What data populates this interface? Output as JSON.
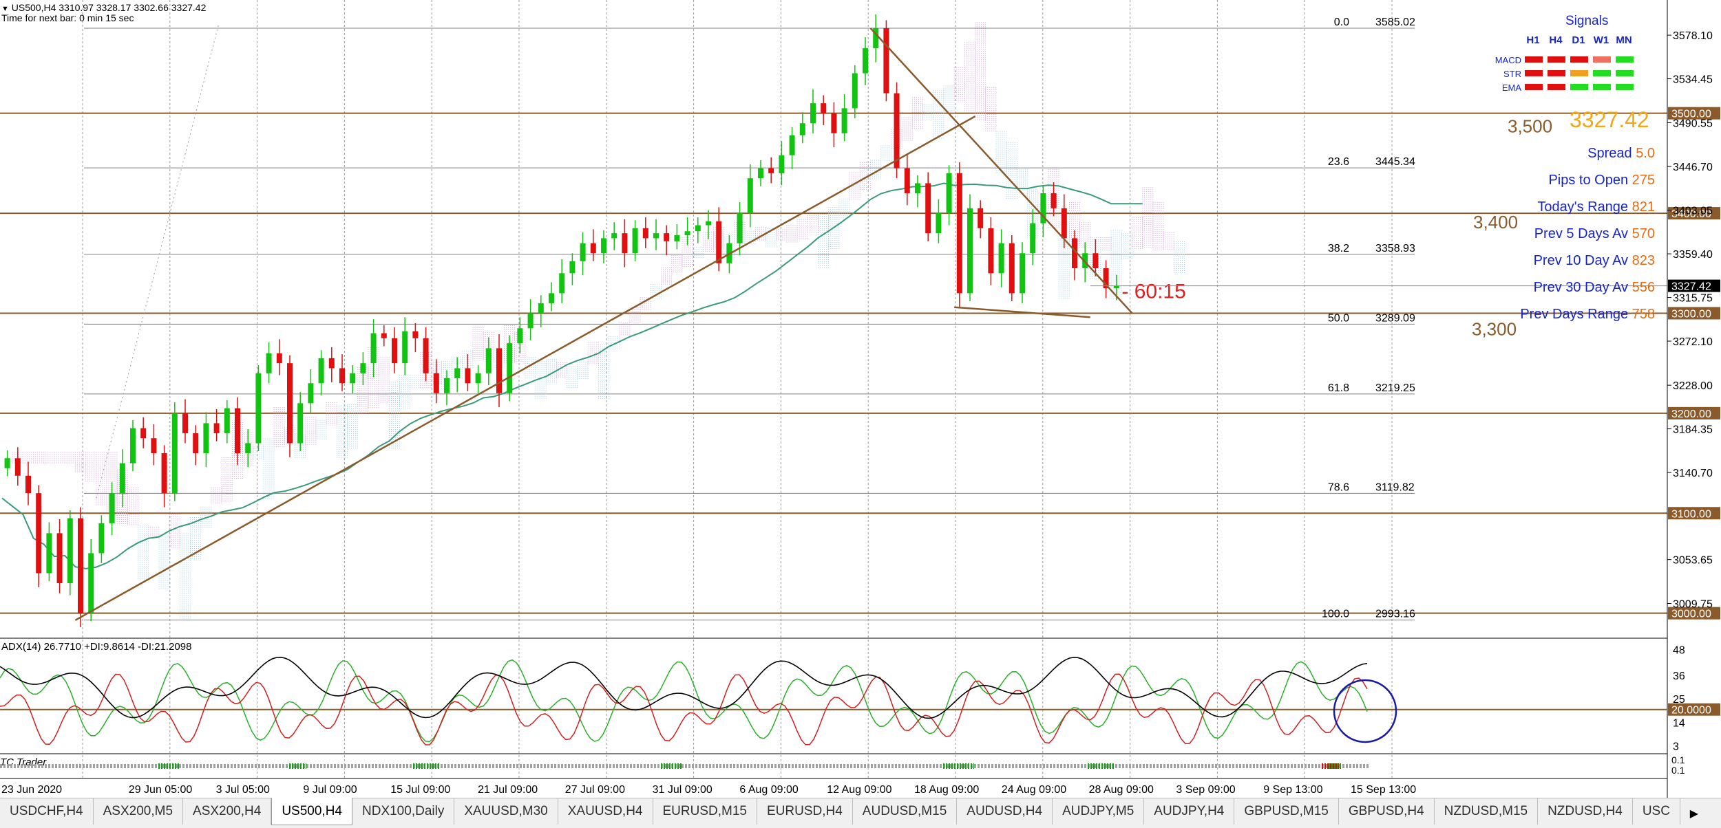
{
  "header": {
    "symbol_line": "US500,H4  3310.97 3328.17 3302.66 3327.42",
    "timer_line": "Time for next bar: 0 min 15 sec"
  },
  "chart_data": {
    "type": "candlestick",
    "symbol": "US500",
    "timeframe": "H4",
    "ohlc_current": {
      "open": 3310.97,
      "high": 3328.17,
      "low": 3302.66,
      "close": 3327.42
    },
    "ylim": [
      2975,
      3605
    ],
    "y_ticks": [
      "3578.10",
      "3534.45",
      "3490.55",
      "3446.70",
      "3403.05",
      "3359.40",
      "3315.75",
      "3272.10",
      "3228.00",
      "3184.35",
      "3140.70",
      "3053.65",
      "3009.75"
    ],
    "x_ticks": [
      "23 Jun 2020",
      "29 Jun 05:00",
      "3 Jul 05:00",
      "9 Jul 09:00",
      "15 Jul 09:00",
      "21 Jul 09:00",
      "27 Jul 09:00",
      "31 Jul 09:00",
      "6 Aug 09:00",
      "12 Aug 09:00",
      "18 Aug 09:00",
      "24 Aug 09:00",
      "28 Aug 09:00",
      "3 Sep 09:00",
      "9 Sep 13:00",
      "15 Sep 13:00"
    ],
    "price_path": [
      [
        0,
        3155
      ],
      [
        2,
        3120
      ],
      [
        3,
        3040
      ],
      [
        4,
        3080
      ],
      [
        5,
        3030
      ],
      [
        6,
        3095
      ],
      [
        7,
        3000
      ],
      [
        8,
        3060
      ],
      [
        9,
        3090
      ],
      [
        11,
        3150
      ],
      [
        12,
        3185
      ],
      [
        13,
        3175
      ],
      [
        14,
        3160
      ],
      [
        15,
        3120
      ],
      [
        16,
        3200
      ],
      [
        17,
        3180
      ],
      [
        18,
        3160
      ],
      [
        19,
        3190
      ],
      [
        20,
        3180
      ],
      [
        21,
        3205
      ],
      [
        22,
        3160
      ],
      [
        23,
        3170
      ],
      [
        24,
        3240
      ],
      [
        25,
        3260
      ],
      [
        26,
        3250
      ],
      [
        27,
        3170
      ],
      [
        28,
        3210
      ],
      [
        29,
        3230
      ],
      [
        30,
        3255
      ],
      [
        31,
        3245
      ],
      [
        32,
        3230
      ],
      [
        33,
        3240
      ],
      [
        34,
        3250
      ],
      [
        35,
        3280
      ],
      [
        36,
        3275
      ],
      [
        37,
        3250
      ],
      [
        38,
        3282
      ],
      [
        39,
        3275
      ],
      [
        40,
        3240
      ],
      [
        41,
        3220
      ],
      [
        42,
        3235
      ],
      [
        43,
        3245
      ],
      [
        44,
        3230
      ],
      [
        45,
        3240
      ],
      [
        46,
        3265
      ],
      [
        47,
        3220
      ],
      [
        48,
        3270
      ],
      [
        49,
        3285
      ],
      [
        50,
        3300
      ],
      [
        51,
        3310
      ],
      [
        52,
        3320
      ],
      [
        53,
        3340
      ],
      [
        54,
        3352
      ],
      [
        55,
        3370
      ],
      [
        56,
        3360
      ],
      [
        57,
        3375
      ],
      [
        58,
        3380
      ],
      [
        59,
        3360
      ],
      [
        60,
        3385
      ],
      [
        61,
        3375
      ],
      [
        62,
        3380
      ],
      [
        63,
        3372
      ],
      [
        64,
        3378
      ],
      [
        65,
        3382
      ],
      [
        66,
        3388
      ],
      [
        67,
        3392
      ],
      [
        68,
        3350
      ],
      [
        69,
        3370
      ],
      [
        70,
        3400
      ],
      [
        71,
        3435
      ],
      [
        72,
        3445
      ],
      [
        73,
        3440
      ],
      [
        74,
        3458
      ],
      [
        75,
        3478
      ],
      [
        76,
        3490
      ],
      [
        77,
        3510
      ],
      [
        78,
        3500
      ],
      [
        79,
        3480
      ],
      [
        80,
        3505
      ],
      [
        81,
        3540
      ],
      [
        82,
        3565
      ],
      [
        83,
        3585
      ],
      [
        84,
        3520
      ],
      [
        85,
        3445
      ],
      [
        86,
        3420
      ],
      [
        87,
        3430
      ],
      [
        88,
        3380
      ],
      [
        89,
        3400
      ],
      [
        90,
        3440
      ],
      [
        91,
        3320
      ],
      [
        92,
        3405
      ],
      [
        93,
        3385
      ],
      [
        94,
        3340
      ],
      [
        95,
        3370
      ],
      [
        96,
        3320
      ],
      [
        97,
        3360
      ],
      [
        98,
        3390
      ],
      [
        99,
        3420
      ],
      [
        100,
        3405
      ],
      [
        101,
        3375
      ],
      [
        102,
        3345
      ],
      [
        103,
        3360
      ],
      [
        104,
        3345
      ],
      [
        105,
        3325
      ],
      [
        106,
        3327.42
      ]
    ],
    "fibonacci": [
      {
        "level": "0.0",
        "price": "3585.02",
        "value": 3585.02
      },
      {
        "level": "23.6",
        "price": "3445.34",
        "value": 3445.34
      },
      {
        "level": "38.2",
        "price": "3358.93",
        "value": 3358.93
      },
      {
        "level": "50.0",
        "price": "3289.09",
        "value": 3289.09
      },
      {
        "level": "61.8",
        "price": "3219.25",
        "value": 3219.25
      },
      {
        "level": "78.6",
        "price": "3119.82",
        "value": 3119.82
      },
      {
        "level": "100.0",
        "price": "2993.16",
        "value": 2993.16
      }
    ],
    "horizontal_levels": [
      {
        "label": "3500.00",
        "value": 3500
      },
      {
        "label": "3400.00",
        "value": 3400
      },
      {
        "label": "3300.00",
        "value": 3300
      },
      {
        "label": "3200.00",
        "value": 3200
      },
      {
        "label": "3100.00",
        "value": 3100
      },
      {
        "label": "3000.00",
        "value": 3000
      }
    ],
    "level_annotations": [
      {
        "text": "3,500",
        "value": 3500
      },
      {
        "text": "3,400",
        "value": 3400
      },
      {
        "text": "3,300",
        "value": 3300
      }
    ],
    "current_price_label": "3327.42",
    "bar_annotation": "- 60:15",
    "trendlines": [
      {
        "name": "rising-trendline",
        "from": [
          7,
          2993
        ],
        "to": [
          93,
          3497
        ]
      },
      {
        "name": "falling-trendline",
        "from": [
          83,
          3585
        ],
        "to": [
          108,
          3300
        ]
      },
      {
        "name": "support-trendline",
        "from": [
          91,
          3306
        ],
        "to": [
          104,
          3296
        ]
      }
    ],
    "adx": {
      "label": "ADX(14) 26.7710 +DI:9.8614 -DI:21.2098",
      "ylim": [
        0,
        52
      ],
      "y_ticks": [
        "48",
        "36",
        "25",
        "14",
        "3"
      ],
      "level_label": "20.0000",
      "level": 20
    },
    "tc_trader_label": "TC Trader",
    "tc_ticks": [
      "0.1",
      "0.1"
    ]
  },
  "signals_panel": {
    "title": "Signals",
    "columns": [
      "H1",
      "H4",
      "D1",
      "W1",
      "MN"
    ],
    "rows": [
      {
        "label": "MACD",
        "colors": [
          "#e01010",
          "#e01010",
          "#e01010",
          "#f07060",
          "#22dd22"
        ]
      },
      {
        "label": "STR",
        "colors": [
          "#e01010",
          "#e01010",
          "#f0a020",
          "#22dd22",
          "#22dd22"
        ]
      },
      {
        "label": "EMA",
        "colors": [
          "#e01010",
          "#e01010",
          "#22dd22",
          "#22dd22",
          "#22dd22"
        ]
      }
    ],
    "price": "3327.42",
    "stats": [
      {
        "label": "Spread",
        "value": "5.0"
      },
      {
        "label": "Pips to Open",
        "value": "275"
      },
      {
        "label": "Today's Range",
        "value": "821"
      },
      {
        "label": "Prev 5 Days Av",
        "value": "570"
      },
      {
        "label": "Prev 10 Day Av",
        "value": "823"
      },
      {
        "label": "Prev 30 Day Av",
        "value": "556"
      },
      {
        "label": "Prev Days Range",
        "value": "758"
      }
    ]
  },
  "tabs": [
    {
      "label": "USDCHF,H4"
    },
    {
      "label": "ASX200,M5"
    },
    {
      "label": "ASX200,H4"
    },
    {
      "label": "US500,H4",
      "active": true
    },
    {
      "label": "NDX100,Daily"
    },
    {
      "label": "XAUUSD,M30"
    },
    {
      "label": "XAUUSD,H4"
    },
    {
      "label": "EURUSD,M15"
    },
    {
      "label": "EURUSD,H4"
    },
    {
      "label": "AUDUSD,M15"
    },
    {
      "label": "AUDUSD,H4"
    },
    {
      "label": "AUDJPY,M5"
    },
    {
      "label": "AUDJPY,H4"
    },
    {
      "label": "GBPUSD,M15"
    },
    {
      "label": "GBPUSD,H4"
    },
    {
      "label": "NZDUSD,M15"
    },
    {
      "label": "NZDUSD,H4"
    },
    {
      "label": "USC"
    }
  ],
  "tab_scroll_icon": "triangle-right-icon"
}
